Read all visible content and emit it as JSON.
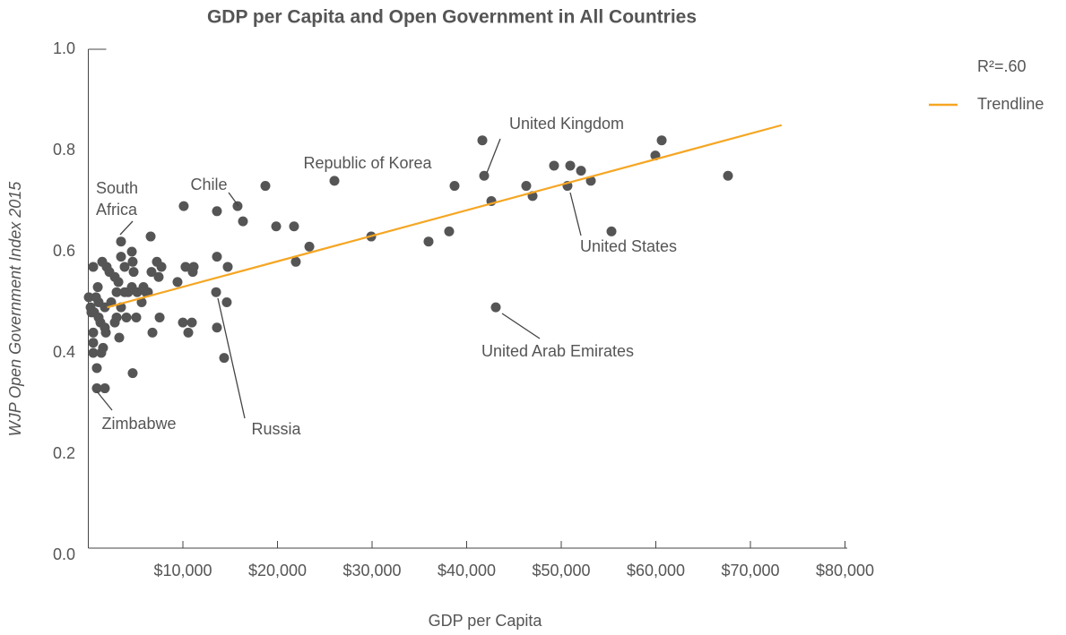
{
  "chart_data": {
    "type": "scatter",
    "title": "GDP per Capita and Open Government in All Countries",
    "x_label": "GDP per Capita",
    "y_label": "WJP Open Government Index 2015",
    "xlim": [
      0,
      80000
    ],
    "ylim": [
      0,
      1
    ],
    "xticks": [
      {
        "value": 10000,
        "label": "$10,000"
      },
      {
        "value": 20000,
        "label": "$20,000"
      },
      {
        "value": 30000,
        "label": "$30,000"
      },
      {
        "value": 40000,
        "label": "$40,000"
      },
      {
        "value": 50000,
        "label": "$50,000"
      },
      {
        "value": 60000,
        "label": "$60,000"
      },
      {
        "value": 70000,
        "label": "$70,000"
      },
      {
        "value": 80000,
        "label": "$80,000"
      }
    ],
    "yticks": [
      {
        "value": 0,
        "label": "0.0"
      },
      0.2,
      0.4,
      0.6,
      0.8,
      {
        "value": 1,
        "label": "1.0"
      }
    ],
    "color": "#555555",
    "x": [
      50,
      240,
      330,
      520,
      620,
      520,
      520,
      520,
      810,
      1000,
      1090,
      1090,
      900,
      900,
      1280,
      1470,
      1370,
      1560,
      1750,
      1750,
      1750,
      1850,
      1940,
      2230,
      2420,
      2800,
      2800,
      2990,
      2990,
      3180,
      3270,
      3460,
      3460,
      3460,
      3840,
      3840,
      4030,
      4220,
      4600,
      4690,
      4600,
      4690,
      4790,
      5070,
      5170,
      5640,
      5830,
      6110,
      6300,
      6590,
      6680,
      6780,
      7250,
      7440,
      7540,
      7730,
      9430,
      10090,
      10280,
      10000,
      10570,
      10950,
      11040,
      11140,
      13510,
      13600,
      13600,
      13600,
      14360,
      14640,
      14740,
      15780,
      16350,
      18720,
      19860,
      21750,
      21940,
      23370,
      26020,
      29910,
      35970,
      38150,
      38720,
      41660,
      41850,
      42610,
      43080,
      46300,
      46970,
      49240,
      50950,
      50660,
      52090,
      53130,
      55310,
      59950,
      60620,
      67630
    ],
    "values": [
      0.51,
      0.49,
      0.48,
      0.57,
      0.48,
      0.44,
      0.42,
      0.4,
      0.51,
      0.53,
      0.5,
      0.47,
      0.37,
      0.33,
      0.46,
      0.58,
      0.4,
      0.41,
      0.33,
      0.49,
      0.45,
      0.44,
      0.57,
      0.56,
      0.5,
      0.55,
      0.46,
      0.52,
      0.47,
      0.54,
      0.43,
      0.62,
      0.59,
      0.49,
      0.57,
      0.52,
      0.47,
      0.52,
      0.6,
      0.58,
      0.53,
      0.36,
      0.56,
      0.47,
      0.52,
      0.5,
      0.53,
      0.52,
      0.52,
      0.63,
      0.56,
      0.44,
      0.58,
      0.55,
      0.47,
      0.57,
      0.54,
      0.69,
      0.57,
      0.46,
      0.44,
      0.46,
      0.56,
      0.57,
      0.52,
      0.68,
      0.59,
      0.45,
      0.39,
      0.5,
      0.57,
      0.69,
      0.66,
      0.73,
      0.65,
      0.65,
      0.58,
      0.61,
      0.74,
      0.63,
      0.62,
      0.64,
      0.73,
      0.82,
      0.75,
      0.7,
      0.49,
      0.73,
      0.71,
      0.77,
      0.77,
      0.73,
      0.76,
      0.74,
      0.64,
      0.79,
      0.82,
      0.75
    ],
    "trendline": {
      "name": "Trendline",
      "color": "#f5a623",
      "x": [
        2000,
        73300
      ],
      "values": [
        0.49,
        0.85
      ]
    },
    "r_squared_label": "R²=.60",
    "annotations": [
      "United Kingdom",
      "Republic of Korea",
      "Chile",
      "South Africa",
      "Zimbabwe",
      "Russia",
      "United Arab Emirates",
      "United States"
    ]
  }
}
